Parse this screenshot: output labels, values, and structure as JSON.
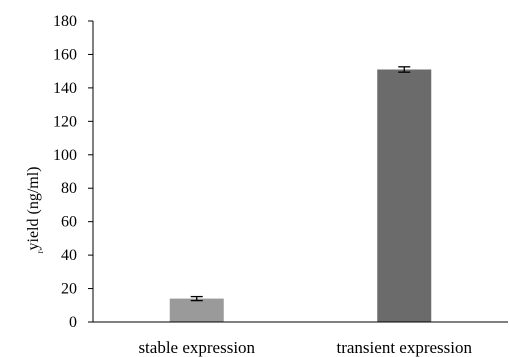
{
  "chart_data": {
    "type": "bar",
    "title": "",
    "xlabel": "",
    "ylabel": "yield  (ng/ml)",
    "ylabel_prefix": "r",
    "categories": [
      "stable expression",
      "transient expression"
    ],
    "series": [
      {
        "values": [
          14,
          151
        ],
        "error": [
          1.2,
          1.6
        ],
        "colors": [
          "#9a9a9a",
          "#6b6b6b"
        ]
      }
    ],
    "ylim": [
      0,
      180
    ],
    "yticks": [
      0,
      20,
      40,
      60,
      80,
      100,
      120,
      140,
      160,
      180
    ],
    "grid": false,
    "legend": "none"
  }
}
